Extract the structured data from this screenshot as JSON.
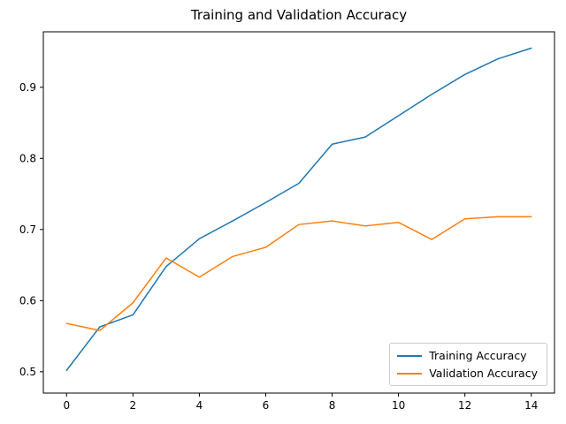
{
  "chart_data": {
    "type": "line",
    "title": "Training and Validation Accuracy",
    "xlabel": "",
    "ylabel": "",
    "x": [
      0,
      1,
      2,
      3,
      4,
      5,
      6,
      7,
      8,
      9,
      10,
      11,
      12,
      13,
      14
    ],
    "series": [
      {
        "name": "Training Accuracy",
        "color": "#1f77b4",
        "values": [
          0.502,
          0.563,
          0.58,
          0.648,
          0.687,
          0.712,
          0.738,
          0.765,
          0.82,
          0.83,
          0.86,
          0.89,
          0.918,
          0.94,
          0.955
        ]
      },
      {
        "name": "Validation Accuracy",
        "color": "#ff7f0e",
        "values": [
          0.568,
          0.558,
          0.597,
          0.66,
          0.633,
          0.662,
          0.675,
          0.707,
          0.712,
          0.705,
          0.71,
          0.686,
          0.715,
          0.718,
          0.718
        ]
      }
    ],
    "xticks": [
      0,
      2,
      4,
      6,
      8,
      10,
      12,
      14
    ],
    "xtick_labels": [
      "0",
      "2",
      "4",
      "6",
      "8",
      "10",
      "12",
      "14"
    ],
    "yticks": [
      0.5,
      0.6,
      0.7,
      0.8,
      0.9
    ],
    "ytick_labels": [
      "0.5",
      "0.6",
      "0.7",
      "0.8",
      "0.9"
    ],
    "xlim": [
      -0.7,
      14.7
    ],
    "ylim": [
      0.47,
      0.978
    ],
    "grid": false,
    "legend_position": "lower right",
    "line_width": 1.5,
    "axis_color": "#000000"
  }
}
